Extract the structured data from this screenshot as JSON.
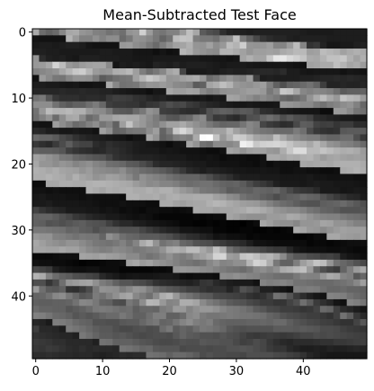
{
  "chart_data": {
    "type": "heatmap",
    "title": "Mean-Subtracted Test Face",
    "colormap": "gray",
    "rows": 50,
    "cols": 50,
    "x_ticks": [
      0,
      10,
      20,
      30,
      40
    ],
    "y_ticks": [
      0,
      10,
      20,
      30,
      40
    ],
    "xlim": [
      -0.5,
      49.5
    ],
    "ylim": [
      49.5,
      -0.5
    ],
    "pixels": "W0ZCRU9aW1RSTUxISkdTVWhWS0lNTVZiWkA8OjEtLCwrLCwsLCwsLCsqKioqKysrKysoJycnJ15VTU1STVFRRUpTUk9KQ0hhZGNMSkpHT1FiSkI6MzAuLiwrLCwsLCsrKysrKyorKyorLCwrKCcnJydVVlFPSkVMUlhZXVRTWFFVYV5nVFNUV05OVmFOMjQtKSkqKiwtLCwrKyoqKioqKisrKioqKCgoJigmJ19cVVNRUF5eW1hUV1dYV1tdYGBXWGFfXVhbXVtUMCwrLCopLCwsKysrKiopKSkqKioqKioqKSkoKCcoWV1ZWWVvcGtoZFtaXmNjZV1YXVVWWmlhVVJWWFlZUCgrKisqKS0sKy0rLCwsKyopKioqKSgoKCgpKCcmWFlbW2JeWVtWTU9RU1pfZWdfVlRVXF1gV0xGSk9ZXDkqKiorKiwtLCwtLi8vLjArKykoKSkpKScpKCcnVlBKSU9TU1JLQENHSUpYX2ZiXVRVWFpcVUZJT1NPTVY2KywrKysrLCwtLi4vLi8uLSsrKiopKCknJygoW09ISUpQVFNWVFBPTUBCWVxiXlVTUlVXTEI8QkNFSEM2LS0uLS0uLi4uLi8uLi8uLi0tKyopKCgmKSlaV1dZWFBMTlJTU1VXV1VKUGVjWk9NT05MR0BCQkNISj40MTExLzAwLzQ3NjUyMS4sLSsqKiopKigqKVlYVFFNUE1KREJFSlNbYVpVZGBeVlFRUUhCP0JCR0tENjQ0MzMwMzQ4PDk6NTMwLi0rKikpKikoKClVVFJQUEtITE5RU01ESFVhXl5gXV1VUVBKQD8+RUpTUDY1NDEwMDM9QEJBPkA/OTEwLSsqKSgoKCUlVlVQSUdHTVNGUVpbUEVJVlZaW1paVVBLRD8+Q0VNUD00NTEvNDw9Q0dDPEA8OzgwLy0sKiopKCgnJ1dRTEVITVFJTUJXZFhVT0xSWFhbVlJPSkZDRERJT0w5NTMwMTpBQDg2NzM1NTAwLy4rKykpKikpJ1hSQ0RJSkpRV0NMZWtlVlZWWFhgWFNPS0lIRUVFS0c7NDIxMj9AQEBFQ0NAOjcyLy0sKyopKCYoKFpTQkVMTkxbd3hkVV1nZmBZV1ZiWlNQTUtLRkNDRkY8NDQxLzU7QTo4ODAuMS8uLSsqKSgnJSgpWVNIRlBQT1JzcGVoaWpoZF9eWmBaU1FNTElFQkFBQD42MzEwLi8yMS8tKyoqKigpKCcnJyYlJSdZV1NXWFhVVFxlbGxgYGRhXlxdW1ZYVlNQSklEQkA+PTgyMC8tLS0sKyoqKigoJygnJSYmJiUlJ1tbWVxbXV5aVllaWFdYV1pUVFFUUk5QUk5MR0ZEQD87NzAuLi0sKyoqKCgnJycmJiUnJScmJiZaWVpbWlxdXV1bXVxaXFlYV1NWUVBPTlFLSUZEQkA9OTQvLSstLCsqKSkoKCkoKCYmJycmJiUlJltcXlxcXF5cW1hdWVdTVVhXVFBKUk9NS0hFQ0NDQDw3NDEtKysrKioqKSkpKSooKCcnJycmJiUlWlpcXFtbXV5eXVxbWlZTUFFOTkxIRkdISEVDQkNAOzY0MSwqKiopKisqKikpKSgnJycmJyYmJiZdW1lcW1xdW1tdW11dWVVSTkpJSEVAQUJBRENCRD86NTMyLyoqKigpKikpKigoKCcnJicmJiYmJV1dW1tcWVxdW1tcXFxYVlFPSEVEQT87P0FCRUNCPTk1Mi8uKioqKykpKSkoKCcmJiYnJiYmJSVbW1hXWVpaXV9eW1lXVlVRTUlGREE+PT1BQkNFQj88ODMwLi0qKiopKScoJyUmJSQmJiUlJCUmW1paWFlZWlteXVtYVFJQUE1JR0NCQD09PT5CQ0NAPDk0Mi8tLCoqKCcmJyYkIyMjIyMkIyQlJVlXVFJSUlZWV1taV1NQTk1NSkhHRUJBPT48PkBBPj08NzIvLywrKSgnJiUjIyIiIyIjIiIhIyVaV1NSUk9UVFVZWFNTUE1NSkpJSEdDREFAPD9AQD09PTk1Mi8tLCgoJyYmIyMiIiMjIiIjIiMkW1lVVFBTVlhXV1dVU1NNTEpISklJQ1JOR0RDQEBAPjw4NDEwLSsnKCYmJSMkIyMjIyMiIiMlJVpaV1ZVV1pXVFJQU1NQTUpJSEpNSE5bYFNIS01EQj08Ozc1MjEvKycnJiUlJSUlIyQkIyQlJiYmWVlYWFpYWFRQTkxNUE9NSktNTlNbXVthYVpVY1tIQj48Ozk2NDQuKScmJiYlJSYlJCQkJCQlJiYmWVhXWVdWVFBQS0hKTlJNS05VWFxpaldVZGZiXV9aUEQ/Pjs6Nzg1KygnJScmJiUlJCMiIyMkJSUmWFpWWFRSUE1KSUdJT1NOT1JSX2lnXEpCQkxXXGRhVEhEQT06Ojg1LCknJiYnJyUlJSMjIyMjJCQlVFVUU1FQTUtJSEZJT1FOUltdYGJWRDw4NUNMVlteW01GQkA8Ozk3LywqJygpKCgpKiopJiUmJiYlUVBSUE5NSklHRkZKTk1NVVtZTkw/RDw8MzpHVFZYWVJLSEI+Pjs6NzIwLy4tLC4zNC8tKyoqKidOTE1OTEhIR0ZFRUdISk9XVkdAP0IyMTU7SlNSUUtPVFJMRkI/PTo3NjMxMjItMj06NSwsKigmTEtMS0dEREVDQ0JDREhPUUpEPkBLSE1SWFpPS0dQXF9VS0hEQD86OTg3NTIwMjdIRj41MCwpJ05NTEhFQ0JBQUJCQ0hPTkpDQjw7SkZRX15VTk9cXFlQS0hEQD49Ojg1NTMzODxHQDUxLigmTkxJRkNDQkI+QEJFSktKSEZHQUREQ0tNVlVOUlVVUk5LSkhFQD46OTY2NTM0OEVDNzAuKyhNTElFREI+QD5AQ0VFSkdCQkdMTEJCRk9RS0lJSktKSUlIR0NBPTs6ODY2NDI3SEE0Ly4tKkxLSUVDQj09PDw/QEBESEpDRElOUUxKTEVDQkJCQ0NEQ0VFQT48Ojk3NjQyMjg/Ni8vLitLSUdEQT8/PDo6PD07PEZKQENBRkpJR0Q/PTw9PT09QEBAP0A/Pjs7Ojc1NDMyMTAvLi4sSkdDQEA+Pz07Ojs8PDs/Q0A/PT08Pjw7ODU0NTY1NDU3OTk7Ojs6OTg3NjU0MzExLy8vLyxIR0JCQkA+PTs6Ojs9PDw/Pj49PTo3ODs5NDEvLjAwMDEyMjQ0NTY3NDM1NDIwLzEvMC8vLklIRkNEPz4+Pjo7Ozs6Ozs9PT49Ozk1MzMvLSsrLCstLCwtLi0wMDEwLy8uLy8tLC0uMC8wMEhHRkJFRUNAOz07Ozo6OTw8PDw6OTc1Mi4sKikpKSkpKSgpKSorLCssKywsKykqKiopKiosLkZHQ0NCQkJBQDw8PDw9Pj9GRUNAPjw9Pj05MzEvLi4uLi8vLy8sLS4rLCopKCcnJiUmJicoK0ZHQ0JBQkJAQ0dGR0tPUFFSUlFRT1NUV1pcXV9gXV1WTks/NzEsLS0rKSgoKCcmJiYmJicqR0dFRERERkpMUFVYW1xcXVlWVlVVWVteX2JlZ2pqaGZgXl1ZVk1BMiwqKSkoJycmJiYlJihKR0VFR0pKTE5SVFZZWldaWlhVUk9OTVBSUVFRUFBRUVFRU1RUVlpaUT80LCopJycmJSUlJSdJSElKSk1OTE5MS0tOTUtKSkpKSEVEQ0NCQ0JAQUNBPTw9PDw7Ozs6OTg1My8tKikoJyYlJSUnSUtOTlBPTUpGQ0FAQD8+Pj9APz8+PDw8PD4+Pj9AQD8/PTs5OTg3NjY1MzEwLSspJyYmJSUnRktOT01NSEhFQkA+Pj4+PT08PDw8Ozs8Oz0/QkNDQkI/Pj08Ozg2NTU1NDIvLi0qKCYmJiUoRElMTUtISEhHRUNAQUBCQ0RDQUA/Pj49Pj9AQEFCQUA/Pj07Ozk4NjY0NDMxLy0rKikoJihGSkxKS0lLSkpLSEZFRkRFRUVERENBQUJCQkJBQUFAP0A+Pjw9Ozw7OTk4NjUyLy4sKisqKURGSUpJSkpNTk1NTk5MTEpKSkhJSUhHRUVDQkA/Pj0+Pj4+PTw7Ozs7Ojk4NzU1NDIxLywqQkRGRkRFR0pLT1BPT05NTUxMTUxLSklHRURDQT8/Pj09PTw7Ojk5OTg4NjY1NDMzMi8tLEBEQ0ZBQUBCQ0VGR0dHSEhJSUhJSUdHREVFQ0FBQD89PDs6OTg3NjY3NjU1NDMyMTAvLi0rP0FBQ0FAPz8/Pj8/QEBBQUNCQkFBQEBAQEA+PT4+Pz8/PDs4NjY1NDQzMjEwMTEwLy4tLSw9QEFCQkFAQEFAPj4+Pz49Pj4+PT4+PTs8PD4+Pz4+Pjs6ODc2NDMzMjEwMC8vLy4uLS0tPT4/QkFBQEFAPz8+PTw8PT4+Pjw8Ozo5OTk5OTg3NjY0MzIyMTEwLy8uLi8uLi0tLSwsLA=="
  }
}
